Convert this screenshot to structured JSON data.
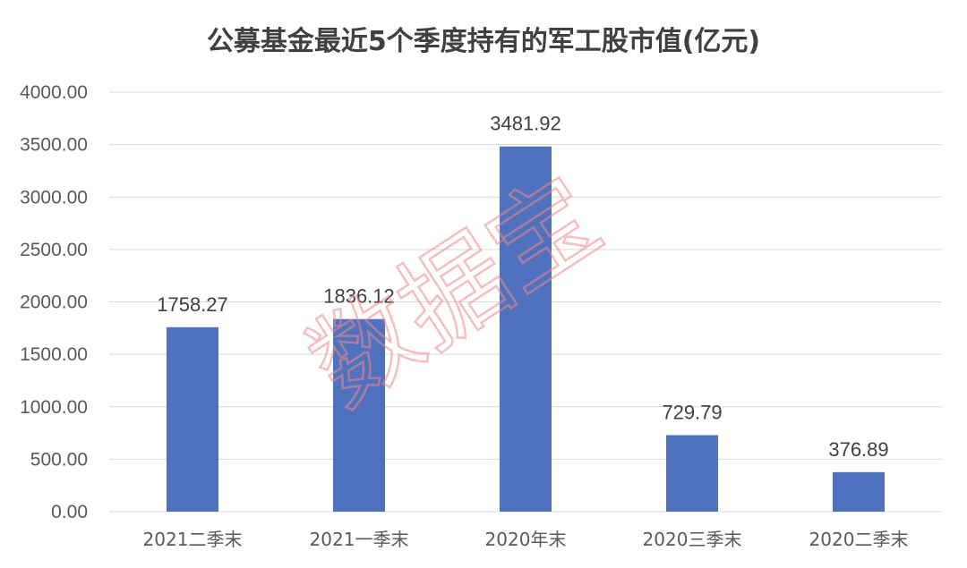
{
  "chart_data": {
    "type": "bar",
    "title": "公募基金最近5个季度持有的军工股市值(亿元)",
    "xlabel": "",
    "ylabel": "",
    "categories": [
      "2021二季末",
      "2021一季末",
      "2020年末",
      "2020三季末",
      "2020二季末"
    ],
    "values": [
      1758.27,
      1836.12,
      3481.92,
      729.79,
      376.89
    ],
    "value_labels": [
      "1758.27",
      "1836.12",
      "3481.92",
      "729.79",
      "376.89"
    ],
    "ylim": [
      0,
      4000
    ],
    "yticks": [
      "0.00",
      "500.00",
      "1000.00",
      "1500.00",
      "2000.00",
      "2500.00",
      "3000.00",
      "3500.00",
      "4000.00"
    ],
    "grid": true,
    "legend": "none",
    "bar_color": "#4f71be"
  },
  "watermark": "数据宝",
  "colors": {
    "gridline": "#d9d9d9",
    "watermark": "#f08a8a"
  }
}
